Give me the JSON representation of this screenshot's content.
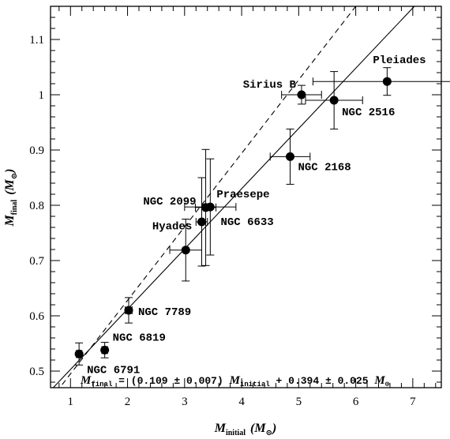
{
  "chart_data": {
    "type": "scatter",
    "xlim": [
      0.65,
      7.5
    ],
    "ylim": [
      0.47,
      1.16
    ],
    "x_ticks": [
      1,
      2,
      3,
      4,
      5,
      6,
      7
    ],
    "y_ticks": [
      0.5,
      0.6,
      0.7,
      0.8,
      0.9,
      1,
      1.1
    ],
    "x_tick_labels": [
      "1",
      "2",
      "3",
      "4",
      "5",
      "6",
      "7"
    ],
    "y_tick_labels": [
      "0.5",
      "0.6",
      "0.7",
      "0.8",
      "0.9",
      "1",
      "1.1"
    ],
    "xlabel": {
      "main": "M",
      "sub": "initial",
      "unit": "(M",
      "unit_sub": "⊙",
      "unit_close": ")"
    },
    "ylabel": {
      "main": "M",
      "sub": "final",
      "unit": "(M",
      "unit_sub": "⊙",
      "unit_close": ")"
    },
    "grid": false,
    "points": [
      {
        "label": "NGC 6791",
        "x": 1.15,
        "y": 0.531,
        "xerr": 0.05,
        "yerr": 0.02
      },
      {
        "label": "NGC 6819",
        "x": 1.6,
        "y": 0.538,
        "xerr": 0.05,
        "yerr": 0.014
      },
      {
        "label": "NGC 7789",
        "x": 2.02,
        "y": 0.61,
        "xerr": 0.06,
        "yerr": 0.023
      },
      {
        "label": "Hyades",
        "x": 3.02,
        "y": 0.719,
        "xerr": 0.28,
        "yerr": 0.056
      },
      {
        "label": "NGC 6633",
        "x": 3.3,
        "y": 0.77,
        "xerr": 0.1,
        "yerr": 0.08
      },
      {
        "label": "NGC 2099",
        "x": 3.37,
        "y": 0.796,
        "xerr": 0.18,
        "yerr": 0.105
      },
      {
        "label": "Praesepe",
        "x": 3.45,
        "y": 0.797,
        "xerr": 0.45,
        "yerr": 0.087
      },
      {
        "label": "NGC 2168",
        "x": 4.85,
        "y": 0.888,
        "xerr": 0.35,
        "yerr": 0.05
      },
      {
        "label": "Sirius B",
        "x": 5.05,
        "y": 1.0,
        "xerr": 0.35,
        "yerr": 0.017
      },
      {
        "label": "NGC 2516",
        "x": 5.62,
        "y": 0.99,
        "xerr": 0.5,
        "yerr": 0.052
      },
      {
        "label": "Pleiades",
        "x": 6.55,
        "y": 1.024,
        "xerr": 1.3,
        "yerr": 0.025
      }
    ],
    "fit_lines": [
      {
        "style": "solid",
        "slope": 0.109,
        "intercept": 0.394
      },
      {
        "style": "dashed",
        "slope": 0.133,
        "intercept": 0.362
      }
    ],
    "equation": {
      "lhs_var": "M",
      "lhs_sub": "final",
      "middle": " = (0.109 ± 0.007) ",
      "rhs_var": "M",
      "rhs_sub": "initial",
      "tail": " + 0.394 ± 0.025 ",
      "unit_var": "M",
      "unit_sub": "⊙"
    }
  }
}
